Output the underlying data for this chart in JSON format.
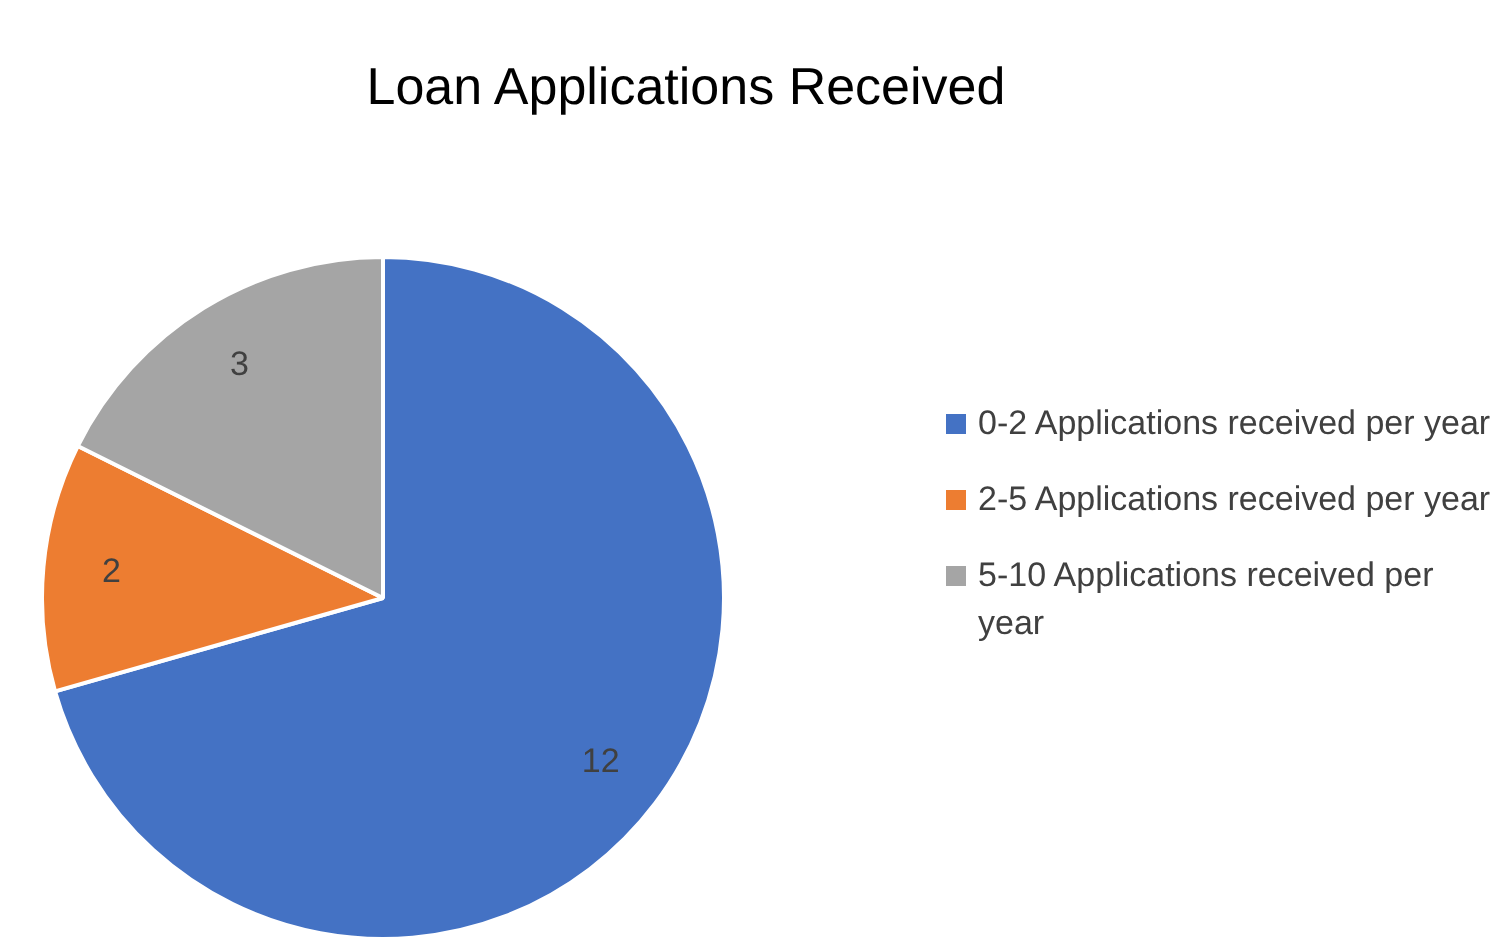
{
  "chart_data": {
    "type": "pie",
    "title": "Loan Applications Received",
    "categories": [
      "0-2 Applications received per year",
      "2-5 Applications received per year",
      "5-10 Applications received per year"
    ],
    "values": [
      12,
      2,
      3
    ],
    "colors": [
      "#4472c4",
      "#ed7d31",
      "#a5a5a5"
    ],
    "data_labels": true,
    "legend": "right"
  }
}
